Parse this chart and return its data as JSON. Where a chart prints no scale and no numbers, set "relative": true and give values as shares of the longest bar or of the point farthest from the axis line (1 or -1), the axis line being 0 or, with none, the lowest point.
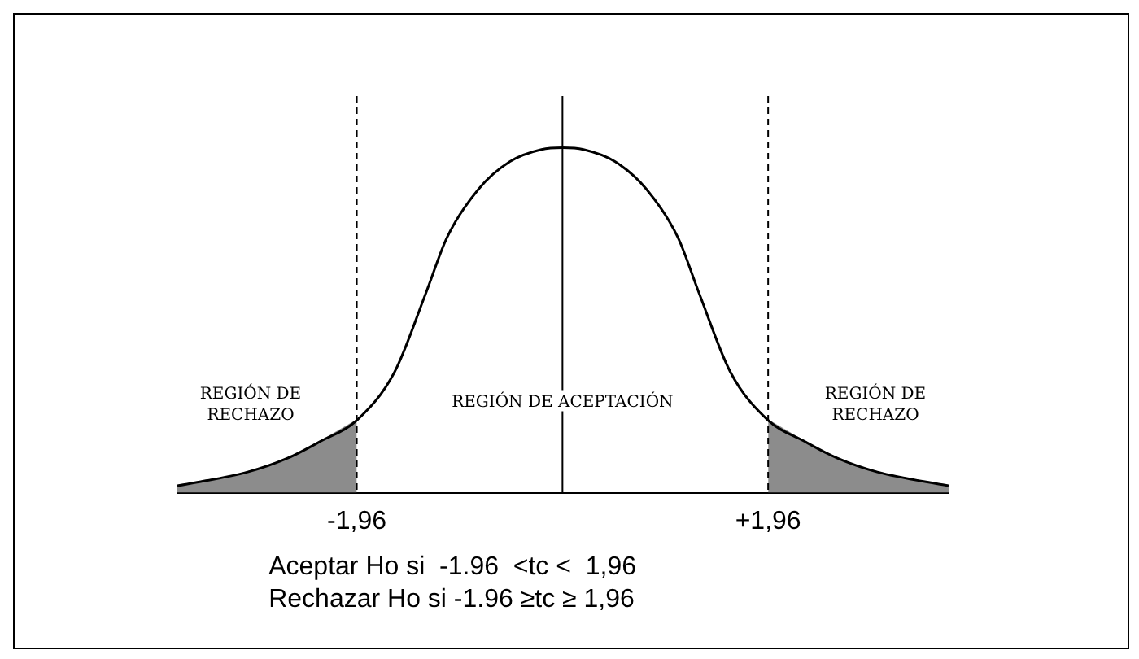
{
  "chart_data": {
    "type": "line",
    "relative": true,
    "x": [
      -3.67,
      -3.0,
      -2.62,
      -2.3,
      -1.96,
      -1.6,
      -1.3,
      -1.1,
      -0.8,
      -0.5,
      -0.2,
      0,
      0.2,
      0.5,
      0.8,
      1.1,
      1.3,
      1.6,
      1.96,
      2.3,
      2.62,
      3.0,
      3.68
    ],
    "series": [
      {
        "color": "#000000",
        "values": [
          0.02,
          0.06,
          0.1,
          0.15,
          0.21,
          0.35,
          0.58,
          0.74,
          0.88,
          0.96,
          0.995,
          1,
          0.995,
          0.96,
          0.88,
          0.74,
          0.58,
          0.35,
          0.21,
          0.15,
          0.1,
          0.06,
          0.02
        ]
      },
      {
        "type": "area",
        "color": "#8c8c8c",
        "x": [
          -3.67,
          -3.0,
          -2.62,
          -2.3,
          -1.96
        ],
        "values": [
          0.02,
          0.06,
          0.1,
          0.15,
          0.21
        ]
      },
      {
        "type": "area",
        "color": "#8c8c8c",
        "x": [
          1.96,
          2.3,
          2.62,
          3.0,
          3.68
        ],
        "values": [
          0.21,
          0.15,
          0.1,
          0.06,
          0.02
        ]
      }
    ],
    "xlim": [
      -3.67,
      3.68
    ],
    "xticks": [
      {
        "value": -1.96,
        "label": "-1,96"
      },
      {
        "value": 1.96,
        "label": "+1,96"
      }
    ],
    "tick_labels": "x",
    "grid": false,
    "legend": false,
    "marker": "none",
    "ref_lines": [
      {
        "axis": "x",
        "value": -1.96,
        "line_style": "dashed"
      },
      {
        "axis": "x",
        "value": 0,
        "line_style": "solid"
      },
      {
        "axis": "x",
        "value": 1.96,
        "line_style": "dashed"
      }
    ],
    "annotations": [
      "REGIÓN DE\nRECHAZO",
      {
        "text": "REGIÓN DE ACEPTACIÓN",
        "x": 0,
        "y": 0.25
      },
      "REGIÓN DE\nRECHAZO",
      "Aceptar Ho si  -1.96  <tc <  1,96",
      "Rechazar Ho si -1.96 ≥tc ≥ 1,96"
    ]
  }
}
